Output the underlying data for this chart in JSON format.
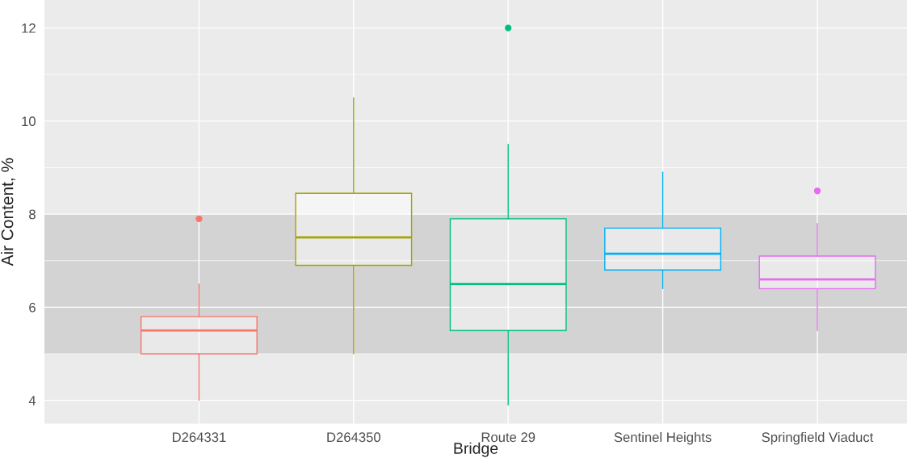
{
  "chart_data": {
    "type": "box",
    "xlabel": "Bridge",
    "ylabel": "Air Content, %",
    "categories": [
      "D264331",
      "D264350",
      "Route 29",
      "Sentinel Heights",
      "Springfield Viaduct"
    ],
    "colors": [
      "#f8766d",
      "#a3a500",
      "#00bf7d",
      "#00b0f6",
      "#e76bf3"
    ],
    "boxes": [
      {
        "low": 4.0,
        "q1": 5.0,
        "median": 5.5,
        "q3": 5.8,
        "high": 6.5,
        "outliers": [
          7.9
        ]
      },
      {
        "low": 5.0,
        "q1": 6.9,
        "median": 7.5,
        "q3": 8.45,
        "high": 10.5
      },
      {
        "low": 3.9,
        "q1": 5.5,
        "median": 6.5,
        "q3": 7.9,
        "high": 9.5,
        "outliers": [
          12
        ]
      },
      {
        "low": 6.4,
        "q1": 6.8,
        "median": 7.15,
        "q3": 7.7,
        "high": 8.9
      },
      {
        "low": 5.5,
        "q1": 6.4,
        "median": 6.6,
        "q3": 7.1,
        "high": 7.8,
        "outliers": [
          8.5
        ]
      }
    ],
    "bands": [
      {
        "axis": "y",
        "from": 5,
        "to": 8,
        "color": "#d3d3d3"
      }
    ],
    "ylim": [
      3.5,
      12.6
    ],
    "yticks": [
      4,
      6,
      8,
      10,
      12
    ],
    "grid": true
  }
}
